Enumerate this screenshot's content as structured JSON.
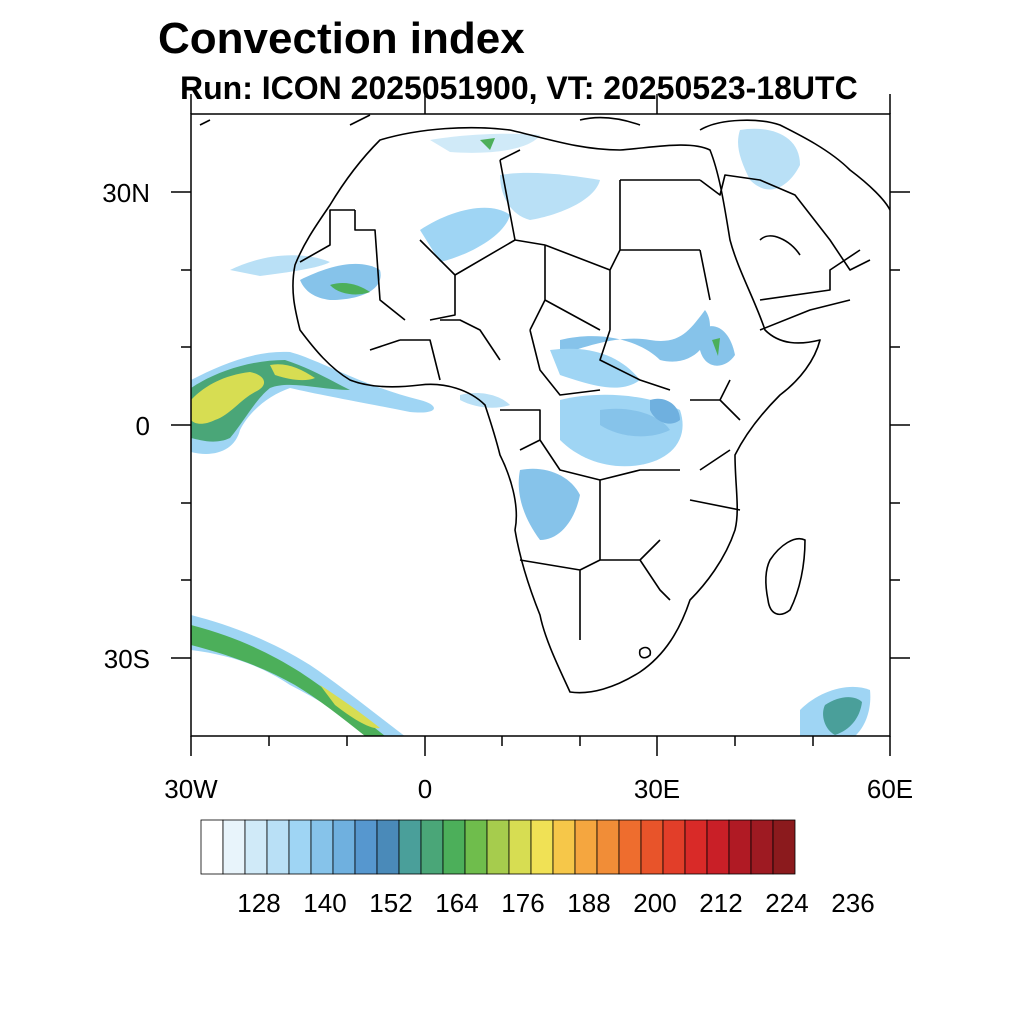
{
  "header": {
    "title": "Convection index",
    "subtitle": "Run: ICON 2025051900,  VT: 20250523-18UTC"
  },
  "map": {
    "region": "Africa",
    "extent": {
      "lon": [
        -30,
        60
      ],
      "lat": [
        -40,
        40
      ]
    },
    "y_ticks": [
      "30N",
      "0",
      "30S"
    ],
    "x_ticks": [
      "30W",
      "0",
      "30E",
      "60E"
    ]
  },
  "colorbar": {
    "labels": [
      "128",
      "140",
      "152",
      "164",
      "176",
      "188",
      "200",
      "212",
      "224",
      "236"
    ],
    "colors": [
      "#ffffff",
      "#e8f4fb",
      "#d0eaf8",
      "#b9e0f6",
      "#9fd5f4",
      "#86c3ea",
      "#6fb0df",
      "#5697cf",
      "#4a8ab9",
      "#4a9f9a",
      "#4aa678",
      "#4caf5a",
      "#6fbd4c",
      "#a6cc4d",
      "#d7dd52",
      "#f0e155",
      "#f6c749",
      "#f5a63f",
      "#f18d37",
      "#ee6d2e",
      "#e8542a",
      "#e23e29",
      "#d92a28",
      "#c91f27",
      "#b01a24",
      "#9e1a22",
      "#8b1a1d"
    ]
  }
}
